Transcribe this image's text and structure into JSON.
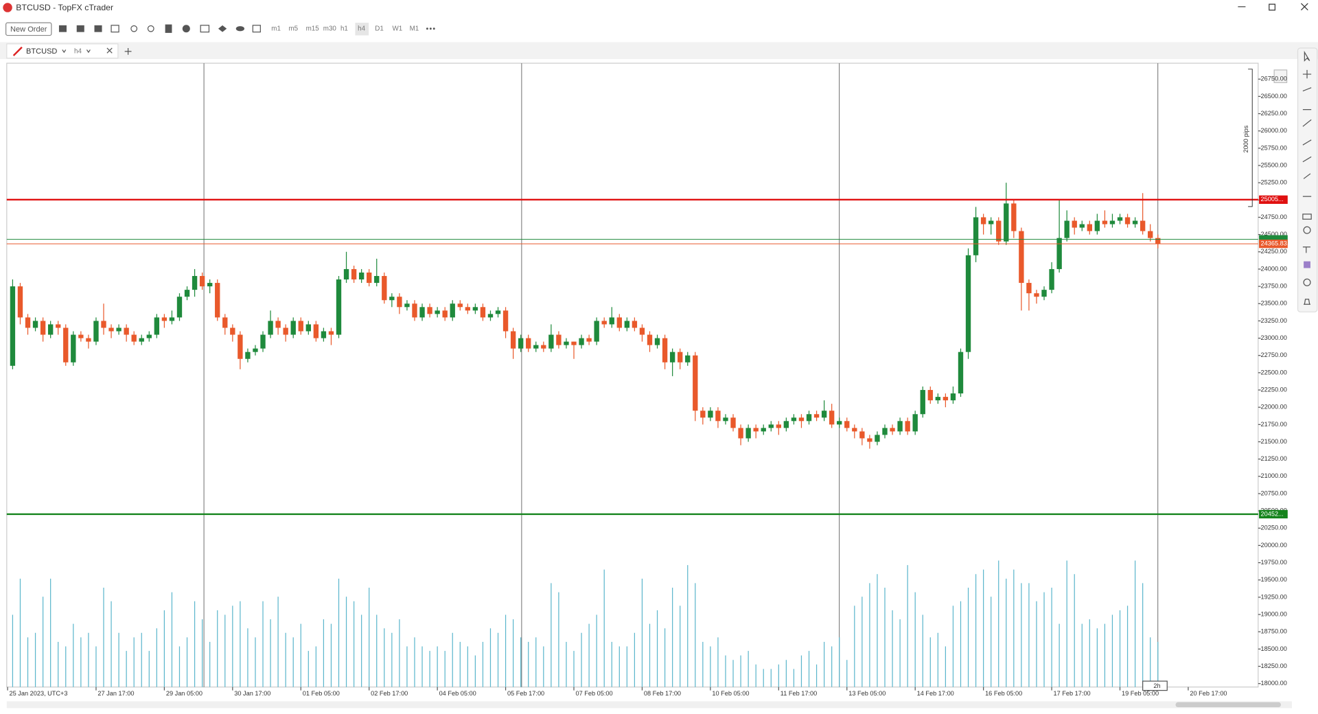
{
  "window": {
    "title": "BTCUSD - TopFX cTrader",
    "new_order": "New Order",
    "timeframes": [
      "m1",
      "m5",
      "m15",
      "m30",
      "h1",
      "h4",
      "D1",
      "W1",
      "M1"
    ],
    "tab_symbol": "BTCUSD",
    "tab_timeframe": "h4"
  },
  "chart_data": {
    "type": "candlestick",
    "ruler_label": "2000 pips",
    "countdown": "2h",
    "up_color": "#1f8a3c",
    "down_color": "#e9592b",
    "volume_color": "#5bb6cc",
    "ylim": [
      17950,
      26980
    ],
    "yticks": [
      {
        "value": 18000,
        "label": "18000.00"
      },
      {
        "value": 18250,
        "label": "18250.00"
      },
      {
        "value": 18500,
        "label": "18500.00"
      },
      {
        "value": 18750,
        "label": "18750.00"
      },
      {
        "value": 19000,
        "label": "19000.00"
      },
      {
        "value": 19250,
        "label": "19250.00"
      },
      {
        "value": 19500,
        "label": "19500.00"
      },
      {
        "value": 19750,
        "label": "19750.00"
      },
      {
        "value": 20000,
        "label": "20000.00"
      },
      {
        "value": 20250,
        "label": "20250.00"
      },
      {
        "value": 20500,
        "label": "20500.00"
      },
      {
        "value": 20750,
        "label": "20750.00"
      },
      {
        "value": 21000,
        "label": "21000.00"
      },
      {
        "value": 21250,
        "label": "21250.00"
      },
      {
        "value": 21500,
        "label": "21500.00"
      },
      {
        "value": 21750,
        "label": "21750.00"
      },
      {
        "value": 22000,
        "label": "22000.00"
      },
      {
        "value": 22250,
        "label": "22250.00"
      },
      {
        "value": 22500,
        "label": "22500.00"
      },
      {
        "value": 22750,
        "label": "22750.00"
      },
      {
        "value": 23000,
        "label": "23000.00"
      },
      {
        "value": 23250,
        "label": "23250.00"
      },
      {
        "value": 23500,
        "label": "23500.00"
      },
      {
        "value": 23750,
        "label": "23750.00"
      },
      {
        "value": 24000,
        "label": "24000.00"
      },
      {
        "value": 24250,
        "label": "24250.00"
      },
      {
        "value": 24500,
        "label": "24500.00"
      },
      {
        "value": 24750,
        "label": "24750.00"
      },
      {
        "value": 25000,
        "label": "25000.00"
      },
      {
        "value": 25250,
        "label": "25250.00"
      },
      {
        "value": 25500,
        "label": "25500.00"
      },
      {
        "value": 25750,
        "label": "25750.00"
      },
      {
        "value": 26000,
        "label": "26000.00"
      },
      {
        "value": 26250,
        "label": "26250.00"
      },
      {
        "value": 26500,
        "label": "26500.00"
      },
      {
        "value": 26750,
        "label": "26750.00"
      }
    ],
    "xticks": [
      "25 Jan 2023, UTC+3",
      "27 Jan 17:00",
      "29 Jan 05:00",
      "30 Jan 17:00",
      "01 Feb 05:00",
      "02 Feb 17:00",
      "04 Feb 05:00",
      "05 Feb 17:00",
      "07 Feb 05:00",
      "08 Feb 17:00",
      "10 Feb 05:00",
      "11 Feb 17:00",
      "13 Feb 05:00",
      "14 Feb 17:00",
      "16 Feb 05:00",
      "17 Feb 17:00",
      "19 Feb 05:00",
      "20 Feb 17:00"
    ],
    "levels": [
      {
        "value": 25005,
        "label": "25005...",
        "color": "#e01010"
      },
      {
        "value": 20452,
        "label": "20452...",
        "color": "#15841c"
      }
    ],
    "bid": {
      "value": 24365.83,
      "label": "24365.83",
      "color": "#e9592b"
    },
    "ask": {
      "value": 24430,
      "color": "#1f8a3c"
    },
    "open": [
      22600,
      23750,
      23300,
      23150,
      23250,
      23050,
      23200,
      23150,
      22650,
      23050,
      23000,
      22950,
      23250,
      23150,
      23100,
      23150,
      23050,
      22950,
      23000,
      23050,
      23300,
      23250,
      23300,
      23600,
      23700,
      23900,
      23750,
      23800,
      23300,
      23150,
      23050,
      22700,
      22800,
      22850,
      23050,
      23250,
      23150,
      23050,
      23250,
      23100,
      23200,
      23000,
      23100,
      23050,
      23850,
      24000,
      23850,
      23950,
      23800,
      23900,
      23550,
      23600,
      23450,
      23500,
      23300,
      23450,
      23350,
      23400,
      23300,
      23500,
      23450,
      23400,
      23450,
      23300,
      23350,
      23400,
      23100,
      22850,
      23000,
      22850,
      22900,
      22850,
      23050,
      22900,
      22950,
      22900,
      23000,
      22950,
      23250,
      23200,
      23300,
      23150,
      23250,
      23150,
      23050,
      22900,
      23000,
      22650,
      22800,
      22650,
      22750,
      21950,
      21850,
      21950,
      21800,
      21850,
      21700,
      21550,
      21700,
      21650,
      21700,
      21750,
      21700,
      21800,
      21850,
      21800,
      21900,
      21850,
      21950,
      21750,
      21800,
      21700,
      21650,
      21550,
      21500,
      21600,
      21700,
      21650,
      21800,
      21650,
      21900,
      22250,
      22100,
      22150,
      22100,
      22200,
      22800,
      24200,
      24750,
      24650,
      24700,
      24400,
      24950,
      24550,
      23800,
      23650,
      23600,
      23700,
      24000,
      24450,
      24700,
      24600,
      24650,
      24550,
      24700,
      24650,
      24700,
      24750,
      24650,
      24700,
      24550,
      24450
    ],
    "high": [
      23850,
      23800,
      23350,
      23300,
      23300,
      23250,
      23250,
      23200,
      23100,
      23100,
      23050,
      23300,
      23500,
      23200,
      23200,
      23200,
      23100,
      23050,
      23100,
      23350,
      23350,
      23400,
      23650,
      23750,
      24000,
      23950,
      23850,
      23850,
      23350,
      23200,
      23100,
      22850,
      22900,
      23100,
      23400,
      23300,
      23200,
      23300,
      23300,
      23250,
      23250,
      23150,
      23150,
      23900,
      24250,
      24050,
      24000,
      24000,
      24150,
      23950,
      23650,
      23650,
      23550,
      23550,
      23500,
      23500,
      23450,
      23450,
      23550,
      23550,
      23500,
      23500,
      23500,
      23400,
      23450,
      23450,
      23150,
      23050,
      23050,
      22950,
      22950,
      23200,
      23100,
      23000,
      22950,
      23050,
      23050,
      23300,
      23300,
      23450,
      23350,
      23300,
      23300,
      23200,
      23100,
      23050,
      23050,
      22850,
      22850,
      22800,
      22800,
      22000,
      22000,
      22000,
      21900,
      21900,
      21750,
      21750,
      21750,
      21750,
      21800,
      21800,
      21850,
      21900,
      21900,
      21950,
      21950,
      22100,
      22050,
      21850,
      21850,
      21750,
      21700,
      21600,
      21650,
      21750,
      21750,
      21850,
      21850,
      21950,
      22300,
      22300,
      22200,
      22200,
      22300,
      22850,
      24300,
      24900,
      24800,
      24750,
      24750,
      25250,
      25000,
      24600,
      23850,
      23700,
      23750,
      24100,
      25000,
      24850,
      24750,
      24700,
      24700,
      24800,
      24850,
      24800,
      24800,
      24800,
      24750,
      25100,
      24650,
      24500
    ],
    "low": [
      22550,
      23200,
      23050,
      23100,
      22950,
      23000,
      23050,
      22600,
      22600,
      22950,
      22850,
      22900,
      23050,
      23000,
      23050,
      22950,
      22900,
      22900,
      22950,
      23000,
      23150,
      23200,
      23250,
      23550,
      23600,
      23700,
      23650,
      23250,
      23050,
      22950,
      22550,
      22650,
      22750,
      22800,
      23000,
      23050,
      22950,
      23000,
      23050,
      23050,
      22950,
      22950,
      22900,
      23000,
      23800,
      23800,
      23800,
      23750,
      23750,
      23500,
      23450,
      23350,
      23400,
      23250,
      23250,
      23300,
      23300,
      23250,
      23250,
      23400,
      23350,
      23350,
      23250,
      23250,
      23300,
      23000,
      22700,
      22800,
      22800,
      22800,
      22800,
      22800,
      22850,
      22850,
      22700,
      22850,
      22900,
      22900,
      23150,
      23150,
      23100,
      23100,
      23100,
      22950,
      22800,
      22850,
      22550,
      22450,
      22550,
      22600,
      21800,
      21750,
      21800,
      21700,
      21750,
      21650,
      21450,
      21500,
      21550,
      21600,
      21650,
      21600,
      21650,
      21750,
      21700,
      21750,
      21800,
      21800,
      21700,
      21700,
      21650,
      21550,
      21450,
      21400,
      21450,
      21550,
      21600,
      21600,
      21600,
      21600,
      21850,
      22050,
      22050,
      22000,
      22050,
      22150,
      22700,
      24100,
      24500,
      24500,
      24350,
      24350,
      24450,
      23400,
      23400,
      23500,
      23550,
      23650,
      23950,
      24400,
      24500,
      24550,
      24500,
      24500,
      24600,
      24600,
      24650,
      24600,
      24600,
      24500,
      24400,
      24300
    ],
    "close": [
      23750,
      23300,
      23150,
      23250,
      23050,
      23200,
      23150,
      22650,
      23050,
      23000,
      22950,
      23250,
      23150,
      23100,
      23150,
      23050,
      22950,
      23000,
      23050,
      23300,
      23250,
      23300,
      23600,
      23700,
      23900,
      23750,
      23800,
      23300,
      23150,
      23050,
      22700,
      22800,
      22850,
      23050,
      23250,
      23150,
      23050,
      23250,
      23100,
      23200,
      23000,
      23100,
      23050,
      23850,
      24000,
      23850,
      23950,
      23800,
      23900,
      23550,
      23600,
      23450,
      23500,
      23300,
      23450,
      23350,
      23400,
      23300,
      23500,
      23450,
      23400,
      23450,
      23300,
      23350,
      23400,
      23100,
      22850,
      23000,
      22850,
      22900,
      22850,
      23050,
      22900,
      22950,
      22900,
      23000,
      22950,
      23250,
      23200,
      23300,
      23150,
      23250,
      23150,
      23050,
      22900,
      23000,
      22650,
      22800,
      22650,
      22750,
      21950,
      21850,
      21950,
      21800,
      21850,
      21700,
      21550,
      21700,
      21650,
      21700,
      21750,
      21700,
      21800,
      21850,
      21800,
      21900,
      21850,
      21950,
      21750,
      21800,
      21700,
      21650,
      21550,
      21500,
      21600,
      21700,
      21650,
      21800,
      21650,
      21900,
      22250,
      22100,
      22150,
      22100,
      22200,
      22800,
      24200,
      24750,
      24650,
      24700,
      24400,
      24950,
      24550,
      23800,
      23650,
      23600,
      23700,
      24000,
      24450,
      24700,
      24600,
      24650,
      24550,
      24700,
      24650,
      24700,
      24750,
      24650,
      24700,
      24550,
      24450,
      24365.83
    ],
    "volume": [
      80,
      120,
      55,
      60,
      100,
      120,
      50,
      45,
      70,
      55,
      60,
      45,
      110,
      95,
      60,
      40,
      55,
      60,
      40,
      65,
      85,
      105,
      45,
      55,
      95,
      75,
      50,
      85,
      80,
      90,
      95,
      65,
      55,
      95,
      75,
      100,
      60,
      55,
      70,
      40,
      45,
      75,
      70,
      120,
      100,
      95,
      80,
      110,
      80,
      65,
      60,
      75,
      45,
      55,
      45,
      40,
      45,
      40,
      60,
      50,
      45,
      35,
      50,
      65,
      60,
      80,
      75,
      55,
      50,
      55,
      45,
      115,
      105,
      50,
      40,
      60,
      70,
      80,
      130,
      50,
      45,
      45,
      60,
      120,
      70,
      85,
      65,
      110,
      90,
      135,
      115,
      50,
      45,
      55,
      35,
      30,
      35,
      40,
      25,
      20,
      20,
      25,
      30,
      20,
      35,
      40,
      25,
      50,
      45,
      55,
      30,
      90,
      100,
      115,
      125,
      110,
      85,
      75,
      135,
      105,
      80,
      55,
      60,
      45,
      90,
      95,
      110,
      125,
      130,
      100,
      140,
      120,
      130,
      115,
      115,
      95,
      105,
      110,
      70,
      140,
      125,
      70,
      75,
      65,
      70,
      80,
      85,
      90,
      140,
      115,
      55,
      50
    ]
  }
}
